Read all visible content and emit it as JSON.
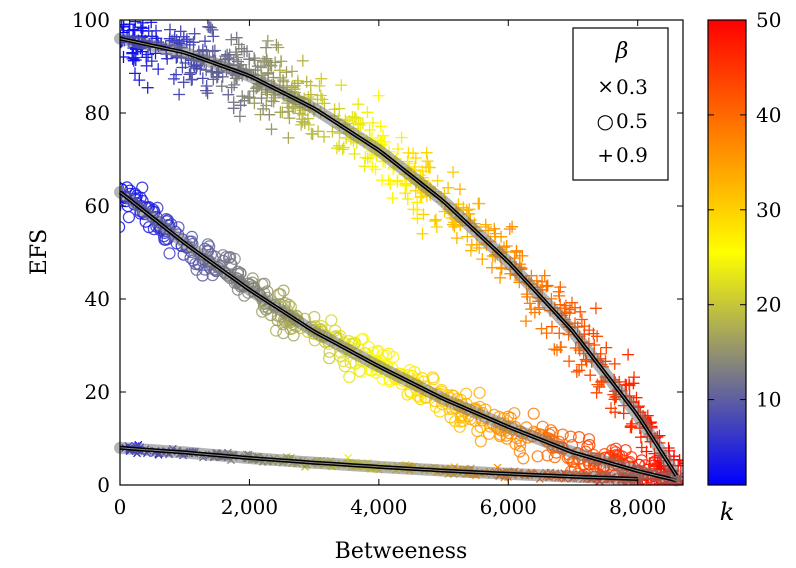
{
  "chart_data": {
    "type": "scatter",
    "title": "",
    "xlabel": "Betweeness",
    "ylabel": "EFS",
    "xlim": [
      0,
      8700
    ],
    "ylim": [
      0,
      100
    ],
    "x_ticks": [
      0,
      2000,
      4000,
      6000,
      8000
    ],
    "x_tick_labels": [
      "0",
      "2,000",
      "4,000",
      "6,000",
      "8,000"
    ],
    "y_ticks": [
      0,
      20,
      40,
      60,
      80,
      100
    ],
    "y_tick_labels": [
      "0",
      "20",
      "40",
      "60",
      "80",
      "100"
    ],
    "grid": false,
    "legend": {
      "title": "β",
      "placement": "top-right",
      "entries": [
        {
          "marker": "×",
          "label": "0.3"
        },
        {
          "marker": "○",
          "label": "0.5"
        },
        {
          "marker": "+",
          "label": "0.9"
        }
      ]
    },
    "colorbar": {
      "label": "k",
      "range": [
        1,
        50
      ],
      "ticks": [
        10,
        20,
        30,
        40,
        50
      ],
      "tick_labels": [
        "10",
        "20",
        "30",
        "40",
        "50"
      ],
      "colors": [
        "#0000ff",
        "#808080",
        "#ffff00",
        "#ff8000",
        "#ff0000"
      ]
    },
    "series": [
      {
        "marker": "cross",
        "beta": 0.3,
        "fit": {
          "x": [
            0,
            1000,
            2000,
            3000,
            4000,
            5000,
            6000,
            7000,
            8000
          ],
          "y": [
            8,
            7,
            5.8,
            4.8,
            3.9,
            3.1,
            2.4,
            1.8,
            1.3
          ]
        },
        "points": {
          "x_range": [
            0,
            8100
          ],
          "k_range": [
            1,
            50
          ],
          "count": 340,
          "noise": 0.4
        }
      },
      {
        "marker": "circle",
        "beta": 0.5,
        "fit": {
          "x": [
            0,
            1000,
            2000,
            3000,
            4000,
            5000,
            6000,
            7000,
            8000,
            8600
          ],
          "y": [
            63,
            52,
            42,
            33,
            25.5,
            18.5,
            12.5,
            7,
            3,
            1
          ]
        },
        "points": {
          "x_range": [
            0,
            8600
          ],
          "k_range": [
            1,
            50
          ],
          "count": 560,
          "noise": 2
        }
      },
      {
        "marker": "plus",
        "beta": 0.9,
        "fit": {
          "x": [
            0,
            1000,
            2000,
            3000,
            4000,
            5000,
            6000,
            7000,
            8000,
            8600
          ],
          "y": [
            96,
            93,
            88,
            81,
            72,
            61,
            48,
            33,
            15,
            2
          ]
        },
        "points": {
          "x_range": [
            0,
            8700
          ],
          "k_range": [
            1,
            50
          ],
          "count": 760,
          "noise": 3.5
        }
      }
    ]
  }
}
